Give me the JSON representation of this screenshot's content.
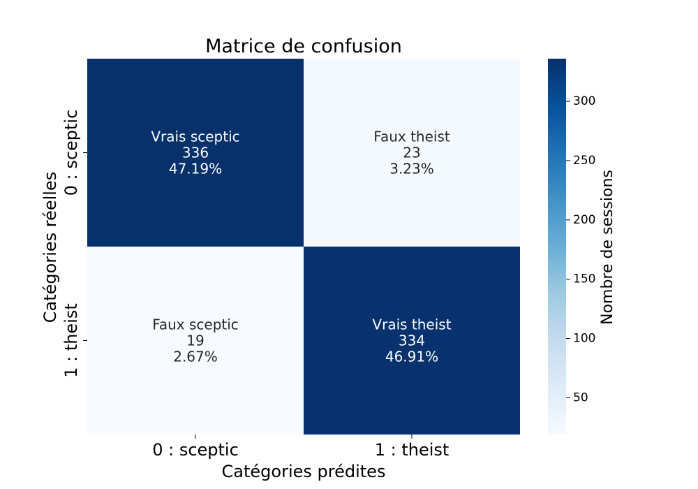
{
  "chart_data": {
    "type": "heatmap",
    "title": "Matrice de confusion",
    "xlabel": "Catégories prédites",
    "ylabel": "Catégories réelles",
    "x_categories": [
      "0 : sceptic",
      "1 : theist"
    ],
    "y_categories": [
      "0 : sceptic",
      "1 : theist"
    ],
    "cells": [
      [
        {
          "label": "Vrais sceptic",
          "count": 336,
          "count_label": "336",
          "percent_label": "47.19%"
        },
        {
          "label": "Faux theist",
          "count": 23,
          "count_label": "23",
          "percent_label": "3.23%"
        }
      ],
      [
        {
          "label": "Faux sceptic",
          "count": 19,
          "count_label": "19",
          "percent_label": "2.67%"
        },
        {
          "label": "Vrais theist",
          "count": 334,
          "count_label": "334",
          "percent_label": "46.91%"
        }
      ]
    ],
    "colorbar": {
      "label": "Nombre de sessions",
      "min": 19,
      "max": 336,
      "ticks": [
        50,
        100,
        150,
        200,
        250,
        300
      ],
      "tick_labels": [
        "50",
        "100",
        "150",
        "200",
        "250",
        "300"
      ],
      "colormap": "Blues",
      "color_stops": [
        "#f7fbff",
        "#deebf7",
        "#c6dbef",
        "#9ecae1",
        "#6baed6",
        "#4292c6",
        "#2171b5",
        "#08519c",
        "#08306b"
      ]
    },
    "dark_text_color": "#262626",
    "light_text_color": "#ffffff",
    "grid": false
  }
}
